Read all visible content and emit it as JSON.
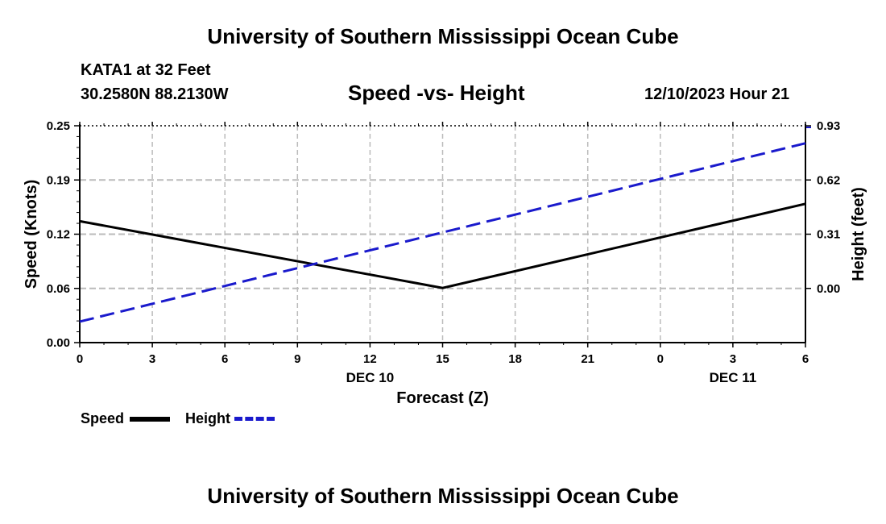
{
  "header": {
    "title": "University of Southern Mississippi Ocean Cube",
    "station": "KATA1 at 32 Feet",
    "location": "30.2580N  88.2130W",
    "plot_title": "Speed -vs- Height",
    "datetime": "12/10/2023 Hour 21"
  },
  "footer": {
    "title": "University of Southern Mississippi Ocean Cube"
  },
  "legend": {
    "speed_label": "Speed",
    "height_label": "Height"
  },
  "colors": {
    "speed": "#000000",
    "height": "#1a1acc",
    "grid": "#bbbbbb"
  },
  "chart_data": {
    "type": "line",
    "title": "Speed -vs- Height",
    "xlabel": "Forecast (Z)",
    "ylabel": "Speed (Knots)",
    "ylabel_right": "Height (feet)",
    "x_tick_labels": [
      "0",
      "3",
      "6",
      "9",
      "12",
      "15",
      "18",
      "21",
      "0",
      "3",
      "6"
    ],
    "x_day_labels": [
      {
        "at_hour_index": 12,
        "label": "DEC 10"
      },
      {
        "at_hour_index": 27,
        "label": "DEC 11"
      }
    ],
    "xlim": [
      0,
      30
    ],
    "ylim": [
      0,
      0.25
    ],
    "y_ticks": [
      "0.00",
      "0.06",
      "0.12",
      "0.19",
      "0.25"
    ],
    "ylim_right": [
      -0.31,
      0.93
    ],
    "y_ticks_right": [
      "0.00",
      "0.31",
      "0.62",
      "0.93"
    ],
    "grid": true,
    "series": [
      {
        "name": "Speed",
        "axis": "left",
        "x": [
          0,
          15,
          30
        ],
        "values": [
          0.14,
          0.063,
          0.16
        ]
      },
      {
        "name": "Height",
        "axis": "right",
        "x": [
          0,
          30
        ],
        "values": [
          -0.19,
          0.83
        ]
      }
    ]
  }
}
